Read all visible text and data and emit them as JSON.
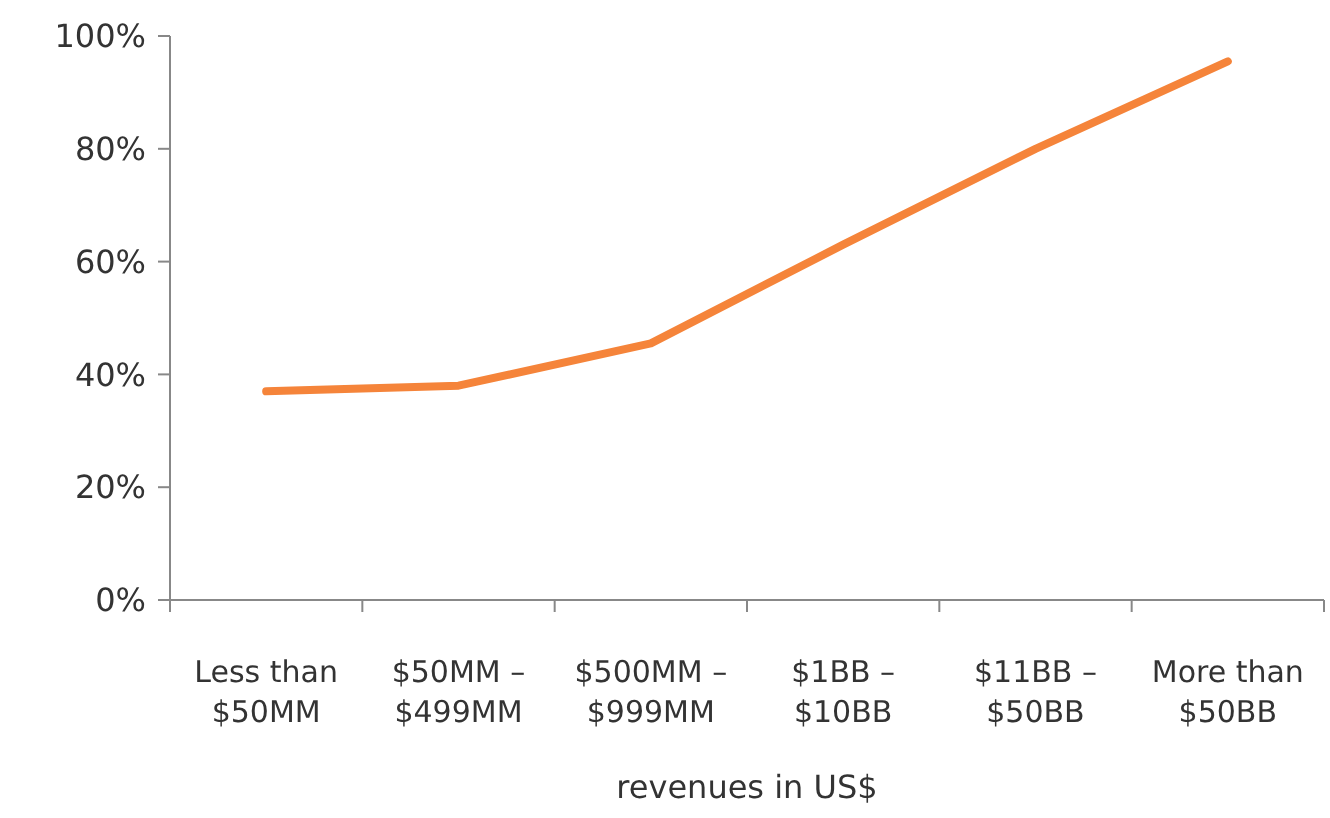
{
  "chart_data": {
    "type": "line",
    "xlabel": "revenues in US$",
    "categories": [
      "Less than $50MM",
      "$50MM – $499MM",
      "$500MM – $999MM",
      "$1BB – $10BB",
      "$11BB – $50BB",
      "More than $50BB"
    ],
    "series": [
      {
        "color": "#f5843a",
        "values": [
          37,
          38,
          45.5,
          63,
          80,
          95.5
        ]
      }
    ],
    "ylim": [
      0,
      100
    ],
    "yticks": [
      {
        "value": 0,
        "label": "0%"
      },
      {
        "value": 20,
        "label": "20%"
      },
      {
        "value": 40,
        "label": "40%"
      },
      {
        "value": 60,
        "label": "60%"
      },
      {
        "value": 80,
        "label": "80%"
      },
      {
        "value": 100,
        "label": "100%"
      }
    ],
    "grid": false,
    "marker": "none",
    "line_style": "solid"
  }
}
